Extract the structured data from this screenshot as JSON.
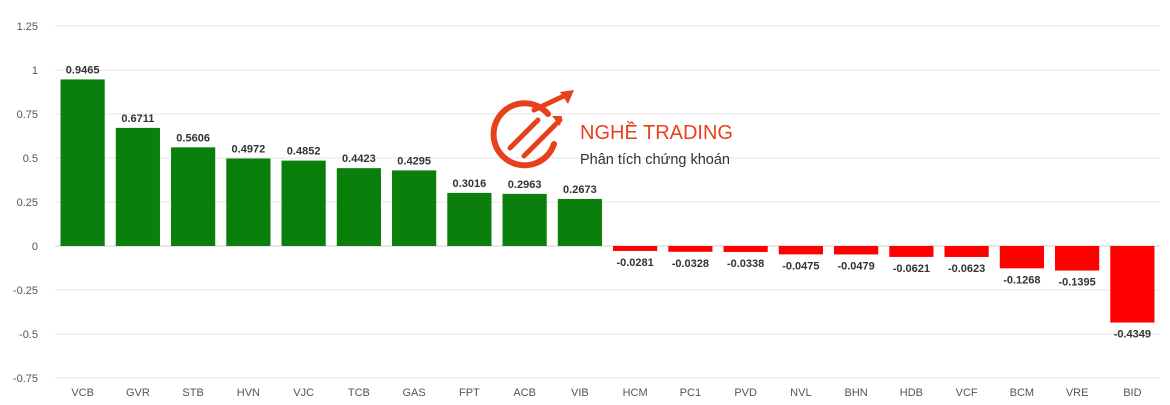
{
  "chart_data": {
    "type": "bar",
    "categories": [
      "VCB",
      "GVR",
      "STB",
      "HVN",
      "VJC",
      "TCB",
      "GAS",
      "FPT",
      "ACB",
      "VIB",
      "HCM",
      "PC1",
      "PVD",
      "NVL",
      "BHN",
      "HDB",
      "VCF",
      "BCM",
      "VRE",
      "BID"
    ],
    "values": [
      0.9465,
      0.6711,
      0.5606,
      0.4972,
      0.4852,
      0.4423,
      0.4295,
      0.3016,
      0.2963,
      0.2673,
      -0.0281,
      -0.0328,
      -0.0338,
      -0.0475,
      -0.0479,
      -0.0621,
      -0.0623,
      -0.1268,
      -0.1395,
      -0.4349
    ],
    "value_labels": [
      "0.9465",
      "0.6711",
      "0.5606",
      "0.4972",
      "0.4852",
      "0.4423",
      "0.4295",
      "0.3016",
      "0.2963",
      "0.2673",
      "-0.0281",
      "-0.0328",
      "-0.0338",
      "-0.0475",
      "-0.0479",
      "-0.0621",
      "-0.0623",
      "-0.1268",
      "-0.1395",
      "-0.4349"
    ],
    "yticks": [
      1.25,
      1,
      0.75,
      0.5,
      0.25,
      0,
      -0.25,
      -0.5,
      -0.75
    ],
    "ytick_labels": [
      "1.25",
      "1",
      "0.75",
      "0.5",
      "0.25",
      "0",
      "-0.25",
      "-0.5",
      "-0.75"
    ],
    "ylim": [
      -0.75,
      1.25
    ],
    "grid": true,
    "positive_color": "#0b7f0b",
    "negative_color": "#ff0000"
  },
  "watermark": {
    "title": "NGHỀ TRADING",
    "subtitle": "Phân tích chứng khoán",
    "color": "#e8401c"
  }
}
